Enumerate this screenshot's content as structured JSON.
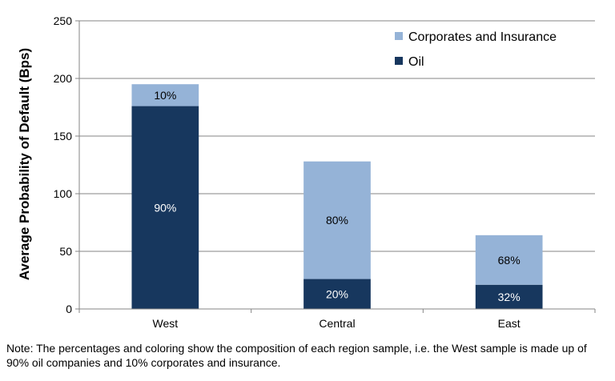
{
  "chart_data": {
    "type": "bar",
    "stacked": true,
    "categories": [
      "West",
      "Central",
      "East"
    ],
    "series": [
      {
        "name": "Oil",
        "color": "#17375e",
        "values": [
          176,
          26,
          21
        ],
        "labels": [
          "90%",
          "20%",
          "32%"
        ]
      },
      {
        "name": "Corporates and Insurance",
        "color": "#95b3d7",
        "values": [
          19,
          102,
          43
        ],
        "labels": [
          "10%",
          "80%",
          "68%"
        ]
      }
    ],
    "title": "",
    "xlabel": "",
    "ylabel": "Average Probability of Default (Bps)",
    "ylim": [
      0,
      250
    ],
    "yticks": [
      0,
      50,
      100,
      150,
      200,
      250
    ],
    "grid": true,
    "legend_position": "top-right",
    "legend_order": [
      "Corporates and Insurance",
      "Oil"
    ]
  },
  "note": "Note: The percentages and coloring show the composition of each region sample, i.e. the West sample is made up of 90% oil companies and 10% corporates and insurance."
}
